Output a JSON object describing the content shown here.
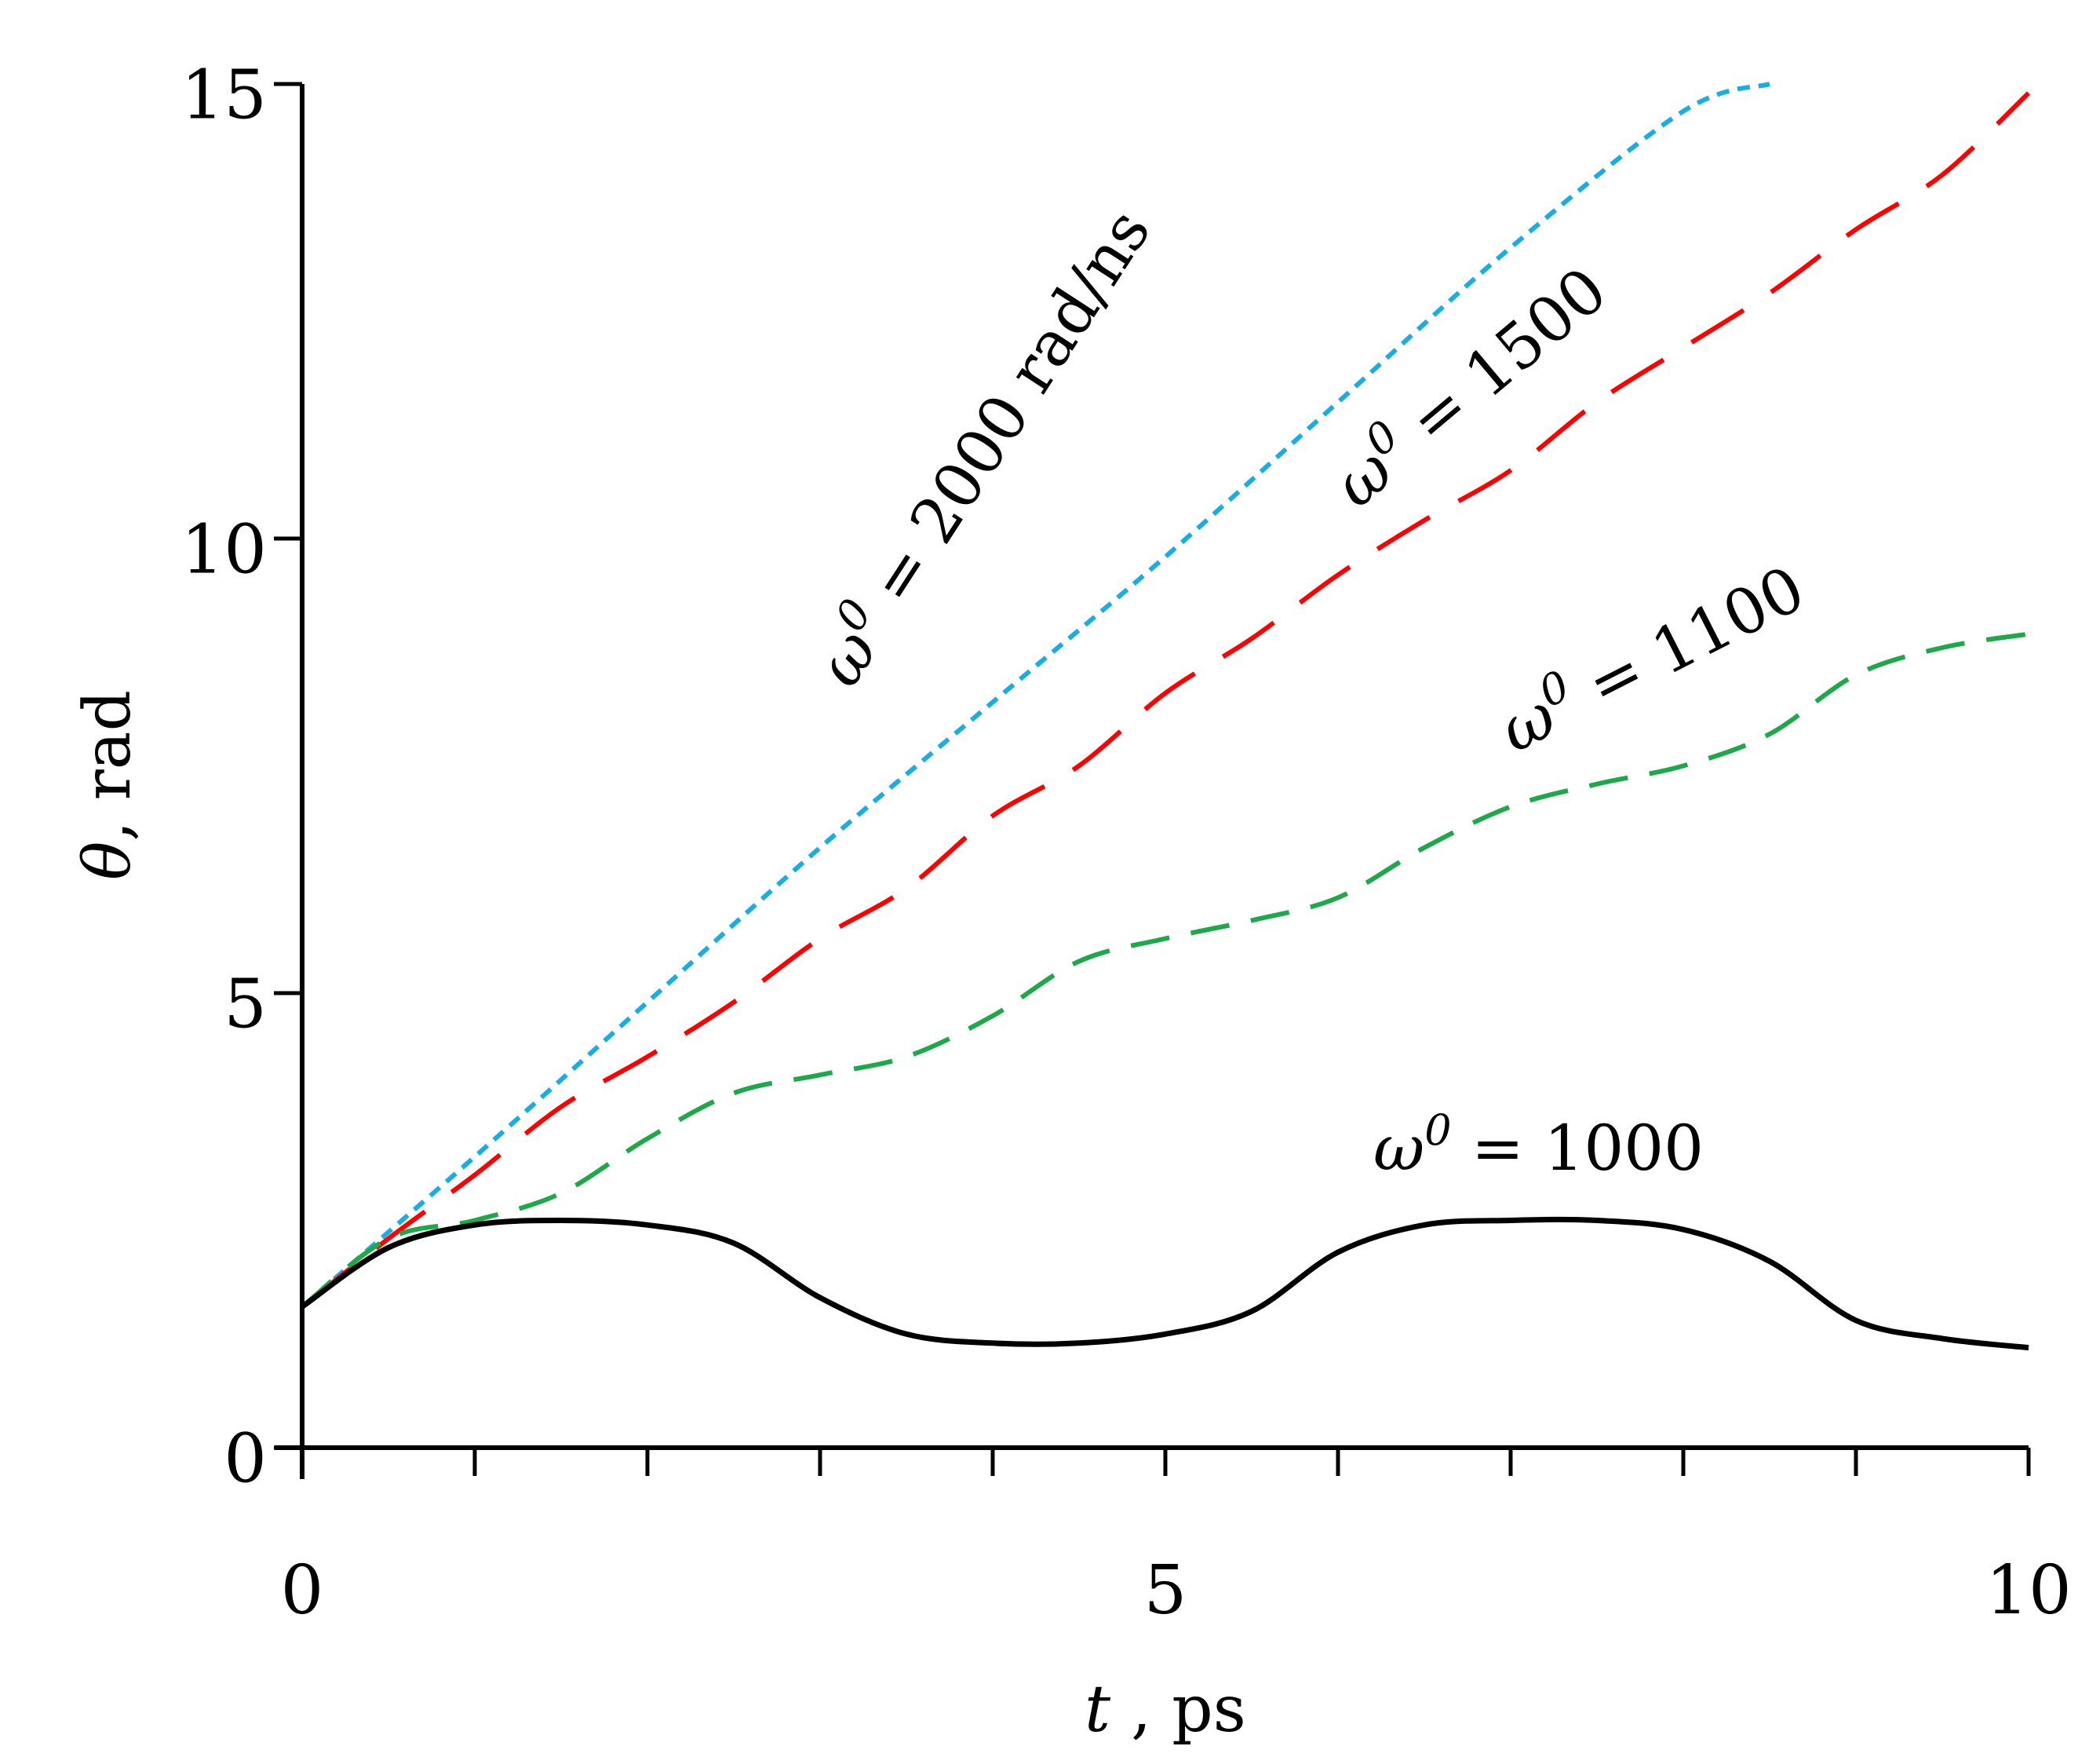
{
  "chart_data": {
    "type": "line",
    "title": "",
    "xlabel": {
      "symbol": "t",
      "unit": " , ps"
    },
    "ylabel": {
      "symbol": "θ",
      "unit": ", rad"
    },
    "xlim": [
      0,
      10
    ],
    "ylim": [
      0,
      15
    ],
    "x_tick_labels": [
      "0",
      "5",
      "10"
    ],
    "y_tick_labels": [
      "0",
      "5",
      "10",
      "15"
    ],
    "x_minor_ticks": [
      0,
      1,
      2,
      3,
      4,
      5,
      6,
      7,
      8,
      9,
      10
    ],
    "grid": false,
    "series": [
      {
        "name": "ω0 = 2000 rad/ns",
        "color": "#1AADE4",
        "style": "dotted",
        "x": [
          0,
          1,
          2,
          3,
          4,
          5,
          6,
          7,
          8,
          8.5
        ],
        "y": [
          1.55,
          3.2,
          4.9,
          6.6,
          8.2,
          9.8,
          11.5,
          13.2,
          14.7,
          15.0
        ]
      },
      {
        "name": "ω0 = 1500",
        "color": "#FF0000",
        "style": "long-dash",
        "x": [
          0,
          0.5,
          1,
          1.5,
          2,
          2.5,
          3,
          3.5,
          4,
          4.5,
          5,
          5.5,
          6,
          6.5,
          7,
          7.5,
          8,
          8.5,
          9,
          9.5,
          10
        ],
        "y": [
          1.55,
          2.3,
          3.0,
          3.75,
          4.3,
          4.9,
          5.6,
          6.15,
          6.95,
          7.5,
          8.3,
          8.9,
          9.6,
          10.2,
          10.75,
          11.5,
          12.1,
          12.7,
          13.4,
          14.0,
          14.9
        ]
      },
      {
        "name": "ω0 = 1100",
        "color": "#1FA84A",
        "style": "dashed",
        "x": [
          0,
          0.5,
          1,
          1.5,
          2,
          2.5,
          3,
          3.5,
          4,
          4.5,
          5,
          5.5,
          6,
          6.5,
          7,
          7.5,
          8,
          8.5,
          9,
          9.5,
          10
        ],
        "y": [
          1.55,
          2.3,
          2.5,
          2.8,
          3.4,
          3.9,
          4.1,
          4.3,
          4.75,
          5.35,
          5.6,
          5.8,
          6.05,
          6.6,
          7.05,
          7.3,
          7.5,
          7.85,
          8.5,
          8.8,
          8.95
        ]
      },
      {
        "name": "ω0 = 1000",
        "color": "#000000",
        "style": "solid",
        "x": [
          0,
          0.5,
          1,
          1.5,
          2,
          2.5,
          3,
          3.5,
          4,
          4.5,
          5,
          5.5,
          6,
          6.5,
          7,
          7.5,
          8,
          8.5,
          9,
          9.5,
          10
        ],
        "y": [
          1.55,
          2.2,
          2.45,
          2.5,
          2.45,
          2.25,
          1.65,
          1.25,
          1.15,
          1.15,
          1.25,
          1.5,
          2.15,
          2.45,
          2.5,
          2.5,
          2.4,
          2.05,
          1.4,
          1.2,
          1.1
        ]
      }
    ],
    "annotations": [
      {
        "symbol": "ω",
        "superscript": "0",
        "text": " = 2000 rad/ns",
        "color": "#000000"
      },
      {
        "symbol": "ω",
        "superscript": "0",
        "text": " = 1500",
        "color": "#000000"
      },
      {
        "symbol": "ω",
        "superscript": "0",
        "text": " = 1100",
        "color": "#000000"
      },
      {
        "symbol": "ω",
        "superscript": "0",
        "text": " = 1000",
        "color": "#000000"
      }
    ]
  }
}
